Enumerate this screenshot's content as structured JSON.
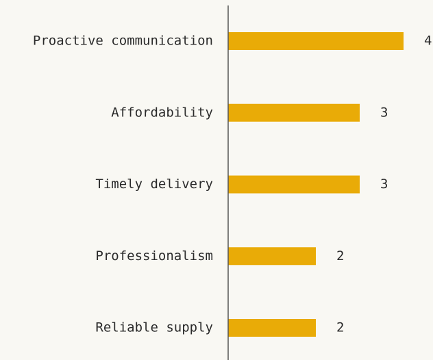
{
  "chart_data": {
    "type": "bar",
    "orientation": "horizontal",
    "categories": [
      "Proactive communication",
      "Affordability",
      "Timely delivery",
      "Professionalism",
      "Reliable supply"
    ],
    "values": [
      4,
      3,
      3,
      2,
      2
    ],
    "color": "#e9ab07"
  }
}
